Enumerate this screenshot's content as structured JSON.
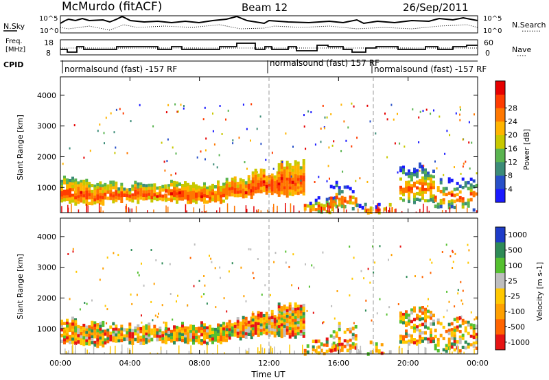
{
  "header": {
    "station": "McMurdo (fitACF)",
    "beam": "Beam 12",
    "date": "26/Sep/2011"
  },
  "noise_panel": {
    "left_label": "N.Sky",
    "right_label": "N.Search",
    "right_label_dots": "........",
    "left_ticks": [
      "10^5",
      "10^0"
    ],
    "right_ticks": [
      "10^5",
      "10^0"
    ]
  },
  "freq_panel": {
    "left_label_1": "Freq.",
    "left_label_2": "[MHz]",
    "left_ticks": [
      "18",
      "8"
    ],
    "right_label": "Nave",
    "right_label_dots": "....",
    "right_ticks": [
      "60",
      "0"
    ]
  },
  "cpid": {
    "label": "CPID",
    "segments": [
      {
        "start_hour": 0,
        "text": "normalsound (fast) -157 RF"
      },
      {
        "start_hour": 12,
        "text": "normalsound (fast) 157 RF"
      },
      {
        "start_hour": 18,
        "text": "normalsound (fast) -157 RF"
      }
    ]
  },
  "chart_data": [
    {
      "type": "heatmap",
      "name": "power",
      "ylabel": "Slant Range [km]",
      "yticks": [
        1000,
        2000,
        3000,
        4000
      ],
      "ylim": [
        180,
        4600
      ],
      "xlim": [
        0,
        24
      ],
      "colorbar_label": "Power [dB]",
      "colorbar_ticks": [
        "4",
        "8",
        "12",
        "16",
        "20",
        "24",
        "28"
      ],
      "colors": [
        "#1a1aff",
        "#2850c8",
        "#3c8c78",
        "#5ab450",
        "#c8c800",
        "#ffb400",
        "#ff7800",
        "#ff3c00",
        "#e60000"
      ],
      "backscatter_bands": [
        {
          "x": [
            0,
            10
          ],
          "y": [
            500,
            1100
          ],
          "level": 5
        },
        {
          "x": [
            10,
            14
          ],
          "y": [
            700,
            1700
          ],
          "level": 8
        },
        {
          "x": [
            14,
            24
          ],
          "y": [
            200,
            2400
          ],
          "level": 2
        }
      ]
    },
    {
      "type": "heatmap",
      "name": "velocity",
      "ylabel": "Slant Range [km]",
      "yticks": [
        1000,
        2000,
        3000,
        4000
      ],
      "ylim": [
        180,
        4600
      ],
      "xlim": [
        0,
        24
      ],
      "xticks": [
        "00:00",
        "04:00",
        "08:00",
        "12:00",
        "16:00",
        "20:00",
        "00:00"
      ],
      "xlabel": "Time UT",
      "colorbar_label": "Velocity [m s-1]",
      "colorbar_ticks": [
        "1000",
        "500",
        "100",
        "25",
        "-25",
        "-100",
        "-500",
        "-1000"
      ],
      "colors": [
        "#1e3cc8",
        "#2e8b57",
        "#55c030",
        "#bebebe",
        "#ffc800",
        "#ffa000",
        "#ff6400",
        "#e61414"
      ],
      "backscatter_bands": [
        {
          "x": [
            0,
            10
          ],
          "y": [
            500,
            1100
          ],
          "level": -100
        },
        {
          "x": [
            10,
            14
          ],
          "y": [
            700,
            1700
          ],
          "level": -500
        },
        {
          "x": [
            14,
            24
          ],
          "y": [
            200,
            2400
          ],
          "level": -25
        }
      ]
    }
  ]
}
